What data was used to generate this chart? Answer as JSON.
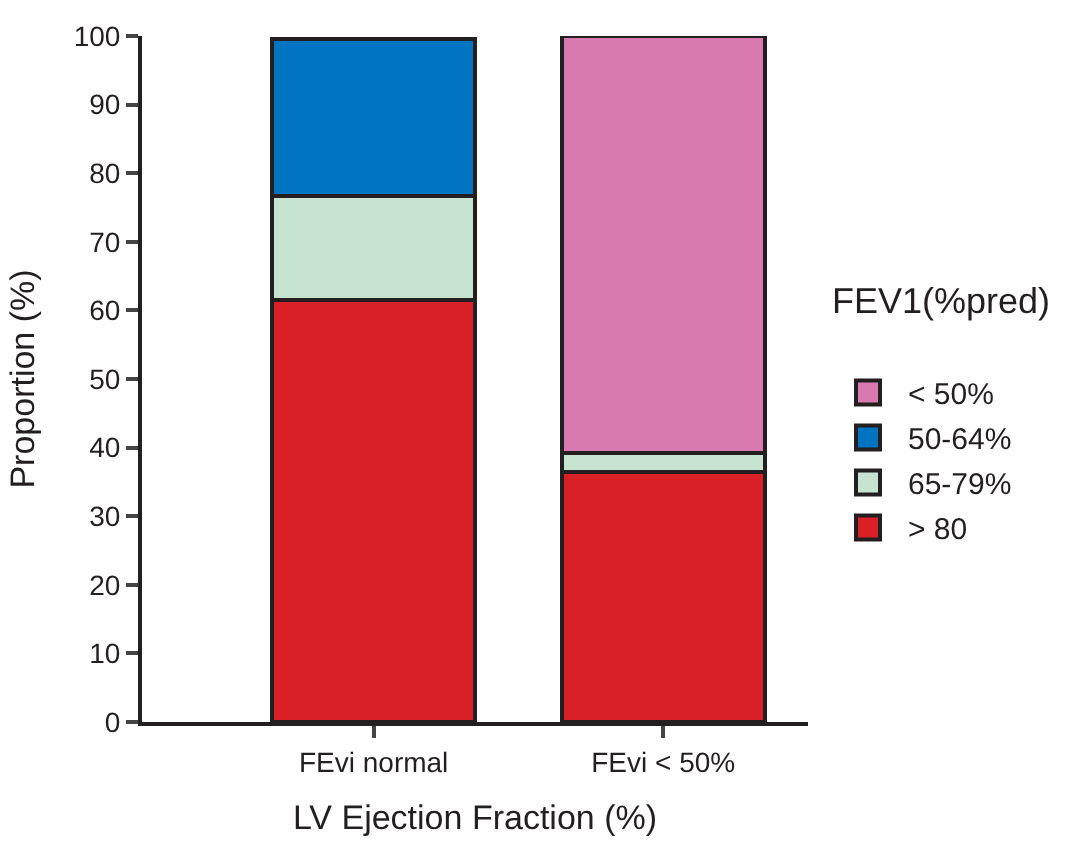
{
  "chart_data": {
    "type": "bar",
    "stacked": true,
    "xlabel": "LV Ejection Fraction (%)",
    "ylabel": "Proportion (%)",
    "legend_title": "FEV1(%pred)",
    "categories": [
      "FEvi normal",
      "FEvi < 50%"
    ],
    "series": [
      {
        "name": "> 80",
        "color": "#d92027",
        "values": [
          61.5,
          36.5
        ]
      },
      {
        "name": "65-79%",
        "color": "#c6e4d0",
        "values": [
          15.2,
          2.7
        ]
      },
      {
        "name": "50-64%",
        "color": "#0074c1",
        "values": [
          22.8,
          null
        ]
      },
      {
        "name": "< 50%",
        "color": "#d87aaf",
        "values": [
          null,
          60.8
        ]
      }
    ],
    "ylim": [
      0,
      100
    ],
    "yticks": [
      0,
      10,
      20,
      30,
      40,
      50,
      60,
      70,
      80,
      90,
      100
    ],
    "legend": "right"
  }
}
